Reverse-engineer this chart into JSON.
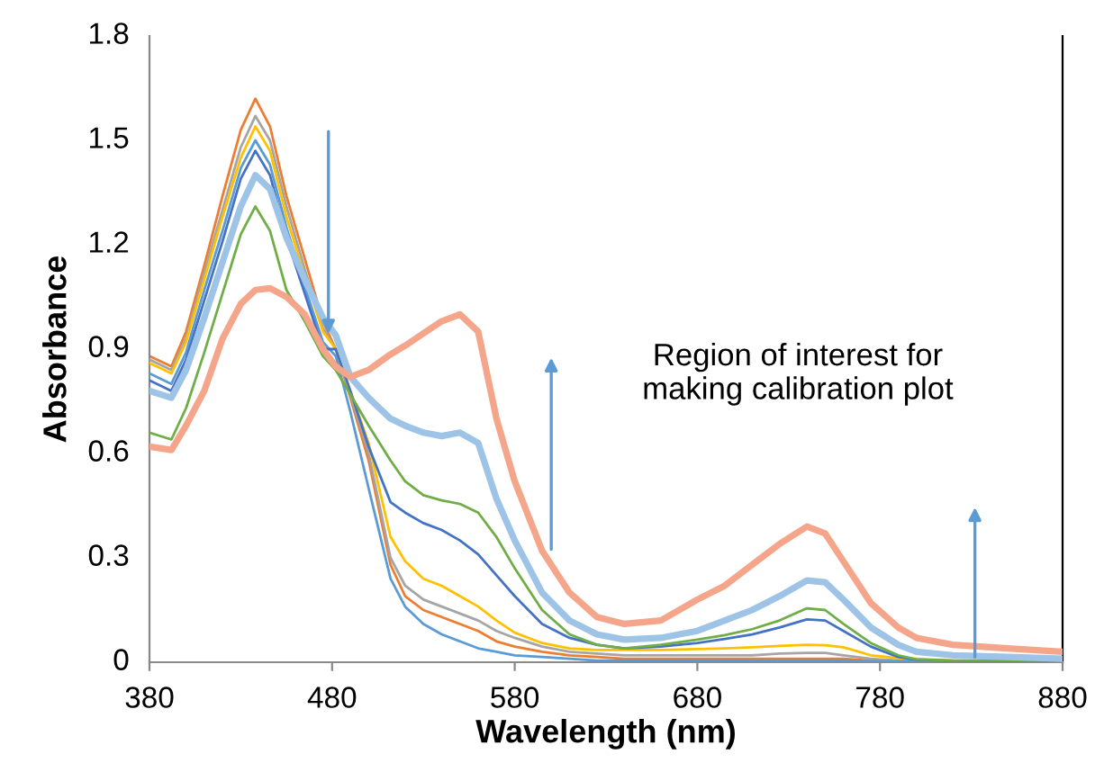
{
  "chart_data": {
    "type": "line",
    "xlabel": "Wavelength (nm)",
    "ylabel": "Absorbance",
    "x": [
      380,
      392,
      400,
      410,
      420,
      430,
      438,
      446,
      455,
      465,
      475,
      482,
      490,
      500,
      512,
      520,
      530,
      540,
      550,
      560,
      570,
      580,
      595,
      610,
      625,
      640,
      660,
      680,
      695,
      710,
      725,
      740,
      750,
      760,
      775,
      790,
      800,
      820,
      850,
      880
    ],
    "series": [
      {
        "color": "#ed7d31",
        "values": [
          0.88,
          0.85,
          0.95,
          1.14,
          1.34,
          1.53,
          1.62,
          1.54,
          1.34,
          1.16,
          0.98,
          0.9,
          0.76,
          0.58,
          0.28,
          0.19,
          0.15,
          0.13,
          0.11,
          0.09,
          0.06,
          0.045,
          0.03,
          0.02,
          0.015,
          0.01,
          0.01,
          0.01,
          0.01,
          0.01,
          0.01,
          0.01,
          0.01,
          0.01,
          0.005,
          0.005,
          0.005,
          null,
          null,
          null
        ]
      },
      {
        "color": "#a5a5a5",
        "values": [
          0.87,
          0.84,
          0.93,
          1.12,
          1.3,
          1.48,
          1.57,
          1.5,
          1.31,
          1.13,
          0.96,
          0.9,
          0.77,
          0.6,
          0.3,
          0.22,
          0.18,
          0.16,
          0.14,
          0.12,
          0.09,
          0.07,
          0.045,
          0.03,
          0.025,
          0.02,
          0.02,
          0.02,
          0.02,
          0.02,
          0.025,
          0.027,
          0.027,
          0.02,
          0.01,
          0.005,
          0.005,
          0.0,
          0.0,
          0.0
        ]
      },
      {
        "color": "#ffc000",
        "values": [
          0.86,
          0.83,
          0.92,
          1.1,
          1.28,
          1.45,
          1.54,
          1.47,
          1.28,
          1.11,
          0.95,
          0.9,
          0.78,
          0.63,
          0.36,
          0.29,
          0.24,
          0.22,
          0.19,
          0.16,
          0.12,
          0.085,
          0.055,
          0.04,
          0.035,
          0.035,
          0.035,
          0.038,
          0.04,
          0.043,
          0.047,
          0.05,
          0.049,
          0.043,
          0.02,
          0.012,
          0.01,
          0.005,
          null,
          null
        ]
      },
      {
        "color": "#5b9bd5",
        "values": [
          0.83,
          0.8,
          0.89,
          1.07,
          1.24,
          1.42,
          1.5,
          1.43,
          1.25,
          1.08,
          0.92,
          0.88,
          0.72,
          0.5,
          0.24,
          0.16,
          0.11,
          0.08,
          0.06,
          0.04,
          0.03,
          0.02,
          0.015,
          0.01,
          0.005,
          0.005,
          0.005,
          0.005,
          0.005,
          0.005,
          0.005,
          0.005,
          0.005,
          0.005,
          0.003,
          0.002,
          0.002,
          0.0,
          0.0,
          0.0
        ]
      },
      {
        "color": "#4472c4",
        "values": [
          0.81,
          0.78,
          0.87,
          1.04,
          1.21,
          1.39,
          1.47,
          1.4,
          1.22,
          1.06,
          0.9,
          0.9,
          0.78,
          0.62,
          0.46,
          0.43,
          0.4,
          0.38,
          0.35,
          0.31,
          0.25,
          0.19,
          0.11,
          0.07,
          0.05,
          0.04,
          0.045,
          0.055,
          0.067,
          0.08,
          0.1,
          0.123,
          0.12,
          0.09,
          0.045,
          0.015,
          0.007,
          0.004,
          0.003,
          0.003
        ]
      },
      {
        "color": "#70ad47",
        "values": [
          0.66,
          0.64,
          0.73,
          0.89,
          1.06,
          1.23,
          1.31,
          1.24,
          1.07,
          0.98,
          0.88,
          0.84,
          0.77,
          0.68,
          0.58,
          0.52,
          0.48,
          0.465,
          0.455,
          0.43,
          0.36,
          0.27,
          0.15,
          0.08,
          0.05,
          0.04,
          0.05,
          0.065,
          0.078,
          0.095,
          0.12,
          0.155,
          0.15,
          0.11,
          0.055,
          0.02,
          0.008,
          0.005,
          0.005,
          0.005
        ]
      },
      {
        "color": "#9dc3e6",
        "values": [
          0.78,
          0.76,
          0.84,
          0.99,
          1.15,
          1.31,
          1.4,
          1.36,
          1.22,
          1.1,
          0.99,
          0.94,
          0.82,
          0.76,
          0.7,
          0.68,
          0.66,
          0.65,
          0.66,
          0.63,
          0.47,
          0.35,
          0.2,
          0.12,
          0.08,
          0.065,
          0.07,
          0.09,
          0.12,
          0.15,
          0.19,
          0.235,
          0.23,
          0.18,
          0.1,
          0.05,
          0.03,
          0.02,
          0.015,
          0.01
        ]
      },
      {
        "color": "#f4a58a",
        "values": [
          0.62,
          0.61,
          0.68,
          0.78,
          0.93,
          1.03,
          1.07,
          1.075,
          1.05,
          1.0,
          0.9,
          0.85,
          0.82,
          0.84,
          0.885,
          0.91,
          0.945,
          0.98,
          1.0,
          0.95,
          0.7,
          0.52,
          0.32,
          0.2,
          0.13,
          0.11,
          0.12,
          0.18,
          0.22,
          0.28,
          0.34,
          0.39,
          0.37,
          0.29,
          0.17,
          0.1,
          0.07,
          0.05,
          0.04,
          0.03
        ]
      }
    ],
    "annotations": [
      "Region of interest for\nmaking calibration plot"
    ],
    "xlim": [
      380,
      880
    ],
    "xticks": [
      380,
      480,
      580,
      680,
      780,
      880
    ],
    "ylim": [
      0,
      1.8
    ],
    "yticks": [
      0,
      0.3,
      0.6,
      0.9,
      1.2,
      1.5,
      1.8
    ],
    "grid": false,
    "legend": false,
    "marker": "none",
    "line_style": "solid"
  }
}
